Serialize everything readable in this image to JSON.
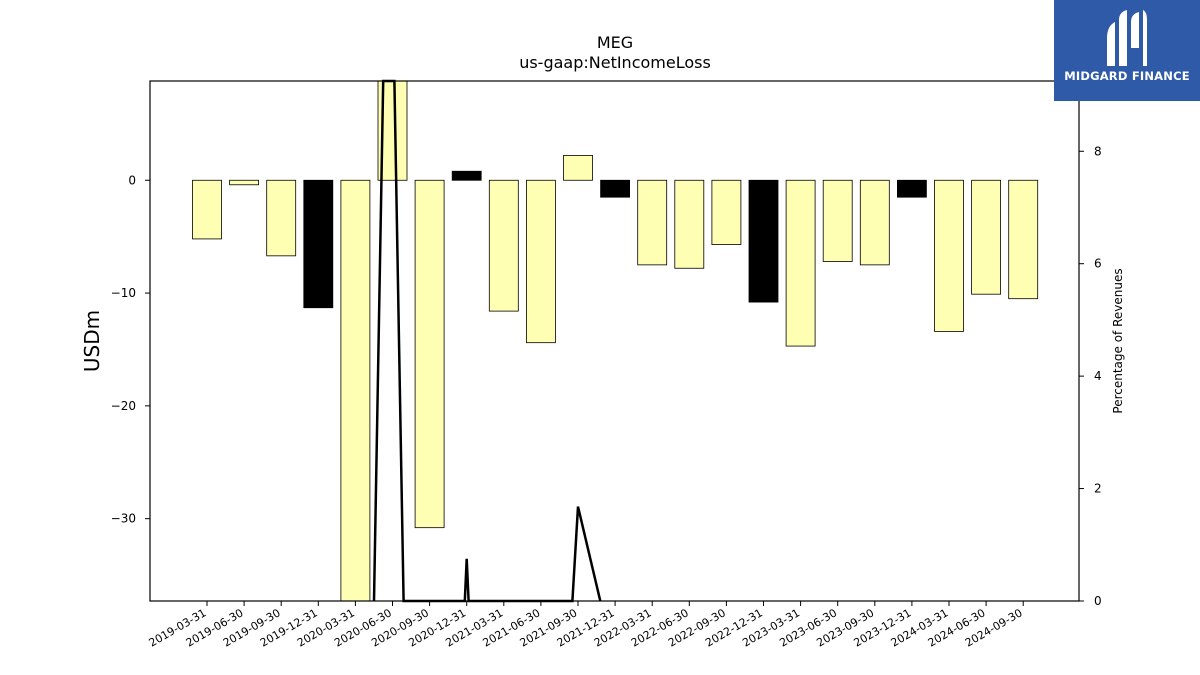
{
  "chart_data": {
    "type": "bar",
    "title": "MEG",
    "subtitle": "us-gaap:NetIncomeLoss",
    "ylabel": "USDm",
    "y2label": "Percentage of Revenues",
    "ylim": [
      -37.3,
      8.8
    ],
    "y2lim": [
      0,
      9.25
    ],
    "yticks": [
      0,
      -10,
      -20,
      -30
    ],
    "y2ticks": [
      0,
      2,
      4,
      6,
      8
    ],
    "categories": [
      "2019-03-31",
      "2019-06-30",
      "2019-09-30",
      "2019-12-31",
      "2020-03-31",
      "2020-06-30",
      "2020-09-30",
      "2020-12-31",
      "2021-03-31",
      "2021-06-30",
      "2021-09-30",
      "2021-12-31",
      "2022-03-31",
      "2022-06-30",
      "2022-09-30",
      "2022-12-31",
      "2023-03-31",
      "2023-06-30",
      "2023-09-30",
      "2023-12-31",
      "2024-03-31",
      "2024-06-30",
      "2024-09-30"
    ],
    "values": [
      -5.2,
      -0.4,
      -6.7,
      -11.3,
      -37.3,
      8.8,
      -30.8,
      0.8,
      -11.6,
      -14.4,
      2.2,
      -1.5,
      -7.5,
      -7.8,
      -5.7,
      -10.8,
      -14.7,
      -7.2,
      -7.5,
      -1.5,
      -13.4,
      -10.1,
      -10.5
    ],
    "bar_colors": [
      "#ffffb3",
      "#ffffb3",
      "#ffffb3",
      "#000000",
      "#ffffb3",
      "#ffffb3",
      "#ffffb3",
      "#000000",
      "#ffffb3",
      "#ffffb3",
      "#ffffb3",
      "#000000",
      "#ffffb3",
      "#ffffb3",
      "#ffffb3",
      "#000000",
      "#ffffb3",
      "#ffffb3",
      "#ffffb3",
      "#000000",
      "#ffffb3",
      "#ffffb3",
      "#ffffb3"
    ],
    "line_points": [
      {
        "x": 4.5,
        "y": 0
      },
      {
        "x": 4.75,
        "y": 9.25
      },
      {
        "x": 5.05,
        "y": 9.25
      },
      {
        "x": 5.3,
        "y": 0
      },
      {
        "x": 6.95,
        "y": 0
      },
      {
        "x": 7.0,
        "y": 0.75
      },
      {
        "x": 7.05,
        "y": 0
      },
      {
        "x": 9.85,
        "y": 0
      },
      {
        "x": 10.0,
        "y": 1.68
      },
      {
        "x": 10.6,
        "y": 0
      }
    ],
    "grid": false,
    "legend": "none"
  },
  "colors": {
    "positive_bar": "#ffffb3",
    "highlight_bar": "#000000",
    "line": "#000000",
    "logo_bg": "#2f5aa8"
  },
  "logo": {
    "text": "MIDGARD FINANCE"
  }
}
